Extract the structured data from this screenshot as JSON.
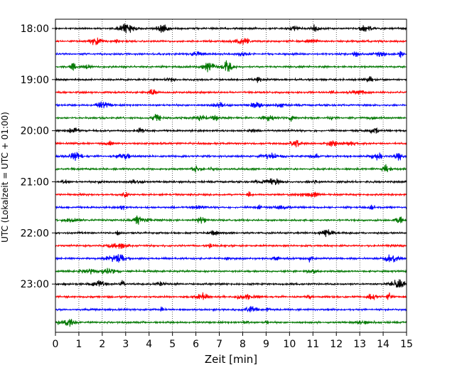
{
  "chart_data": {
    "type": "line",
    "title": "",
    "xlabel": "Zeit  [min]",
    "ylabel": "UTC (Lokalzeit = UTC + 01:00)",
    "xlim": [
      0,
      15
    ],
    "xticks": [
      0,
      1,
      2,
      3,
      4,
      5,
      6,
      7,
      8,
      9,
      10,
      11,
      12,
      13,
      14,
      15
    ],
    "ytick_labels": [
      "18:00",
      "19:00",
      "20:00",
      "21:00",
      "22:00",
      "23:00"
    ],
    "start_time": "18:00",
    "trace_interval_min": 15,
    "trace_count": 24,
    "trace_colors": [
      "#000000",
      "#ff0000",
      "#0000ff",
      "#007700"
    ],
    "grid": "vertical dotted",
    "legend": "none"
  }
}
